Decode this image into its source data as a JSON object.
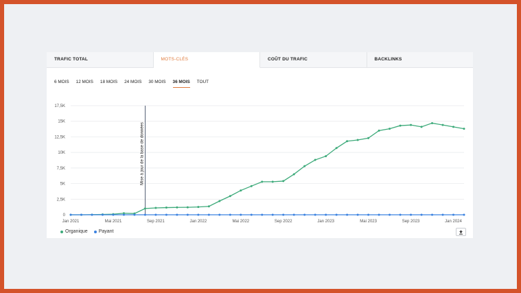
{
  "tabs": [
    {
      "label": "TRAFIC TOTAL",
      "active": false
    },
    {
      "label": "MOTS-CLÉS",
      "active": true
    },
    {
      "label": "COÛT DU TRAFIC",
      "active": false
    },
    {
      "label": "BACKLINKS",
      "active": false
    }
  ],
  "periods": [
    {
      "label": "6 MOIS",
      "active": false
    },
    {
      "label": "12 MOIS",
      "active": false
    },
    {
      "label": "18 MOIS",
      "active": false
    },
    {
      "label": "24 MOIS",
      "active": false
    },
    {
      "label": "30 MOIS",
      "active": false
    },
    {
      "label": "36 MOIS",
      "active": true
    },
    {
      "label": "TOUT",
      "active": false
    }
  ],
  "legend": [
    {
      "label": "Organique",
      "color": "#3daa7a"
    },
    {
      "label": "Payant",
      "color": "#3b82e0"
    }
  ],
  "export_icon": "upload-icon",
  "chart_data": {
    "type": "line",
    "ylim": [
      0,
      17500
    ],
    "yticks": [
      0,
      2500,
      5000,
      7500,
      10000,
      12500,
      15000,
      17500
    ],
    "ytick_labels": [
      "0",
      "2,5K",
      "5K",
      "7,5K",
      "10K",
      "12,5K",
      "15K",
      "17,5K"
    ],
    "xtick_labels": [
      "Jan 2021",
      "Mai 2021",
      "Sep 2021",
      "Jan 2022",
      "Mai 2022",
      "Sep 2022",
      "Jan 2023",
      "Mai 2023",
      "Sep 2023",
      "Jan 2024"
    ],
    "grid": true,
    "annotation": {
      "label": "Mise à jour de la base de données",
      "at_month": 7
    },
    "series": [
      {
        "name": "Organique",
        "color": "#3daa7a",
        "values": [
          0,
          0,
          20,
          50,
          100,
          250,
          200,
          1000,
          1100,
          1150,
          1180,
          1200,
          1250,
          1350,
          2200,
          3000,
          3900,
          4600,
          5300,
          5300,
          5400,
          6500,
          7800,
          8800,
          9400,
          10700,
          11800,
          12000,
          12300,
          13500,
          13800,
          14300,
          14400,
          14100,
          14700,
          14400,
          14100,
          13800
        ]
      },
      {
        "name": "Payant",
        "color": "#3b82e0",
        "values": [
          0,
          0,
          0,
          0,
          0,
          0,
          0,
          0,
          0,
          0,
          0,
          0,
          0,
          0,
          0,
          0,
          0,
          0,
          0,
          0,
          0,
          0,
          0,
          0,
          0,
          0,
          0,
          0,
          0,
          0,
          0,
          0,
          0,
          0,
          0,
          0,
          0,
          0
        ]
      }
    ]
  }
}
